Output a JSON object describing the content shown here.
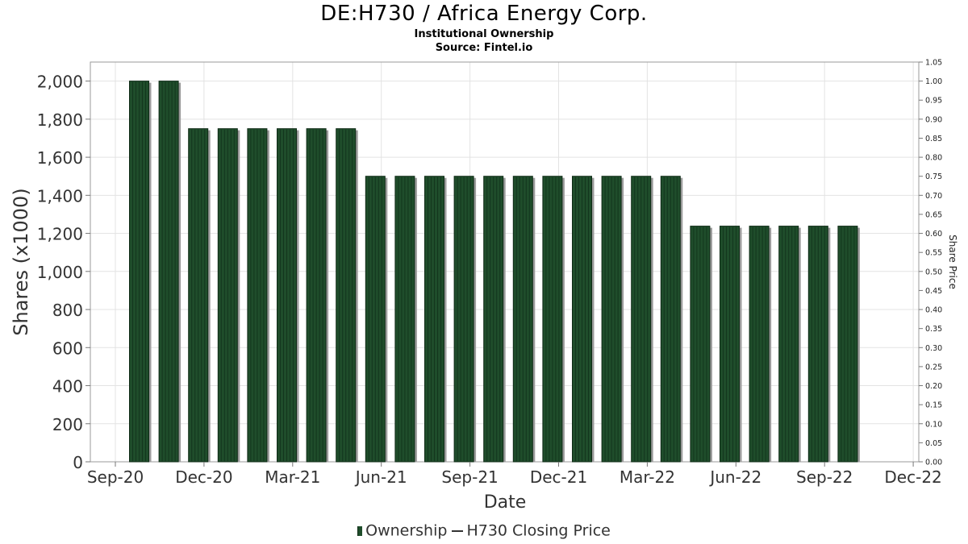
{
  "chart_data": {
    "type": "bar",
    "title": "DE:H730 / Africa Energy Corp.",
    "subtitle": "Institutional Ownership",
    "source": "Source: Fintel.io",
    "xlabel": "Date",
    "ylabel": "Shares (x1000)",
    "y2label": "Share Price",
    "ylim": [
      0,
      2100
    ],
    "y2lim": [
      0,
      1.05
    ],
    "yticks": [
      "0",
      "200",
      "400",
      "600",
      "800",
      "1,000",
      "1,200",
      "1,400",
      "1,600",
      "1,800",
      "2,000"
    ],
    "y2ticks": [
      "0.00",
      "0.05",
      "0.10",
      "0.15",
      "0.20",
      "0.25",
      "0.30",
      "0.35",
      "0.40",
      "0.45",
      "0.50",
      "0.55",
      "0.60",
      "0.65",
      "0.70",
      "0.75",
      "0.80",
      "0.85",
      "0.90",
      "0.95",
      "1.00",
      "1.05"
    ],
    "xticks": [
      "Sep-20",
      "Dec-20",
      "Mar-21",
      "Jun-21",
      "Sep-21",
      "Dec-21",
      "Mar-22",
      "Jun-22",
      "Sep-22",
      "Dec-22"
    ],
    "grid": true,
    "legend_position": "bottom-center",
    "bar_color": "#1f4d2b",
    "series": [
      {
        "name": "Ownership",
        "values": [
          2000,
          2000,
          1750,
          1750,
          1750,
          1750,
          1750,
          1750,
          1500,
          1500,
          1500,
          1500,
          1500,
          1500,
          1500,
          1500,
          1500,
          1500,
          1500,
          1238,
          1238,
          1238,
          1238,
          1238,
          1238
        ]
      },
      {
        "name": "H730 Closing Price",
        "values": []
      }
    ]
  }
}
